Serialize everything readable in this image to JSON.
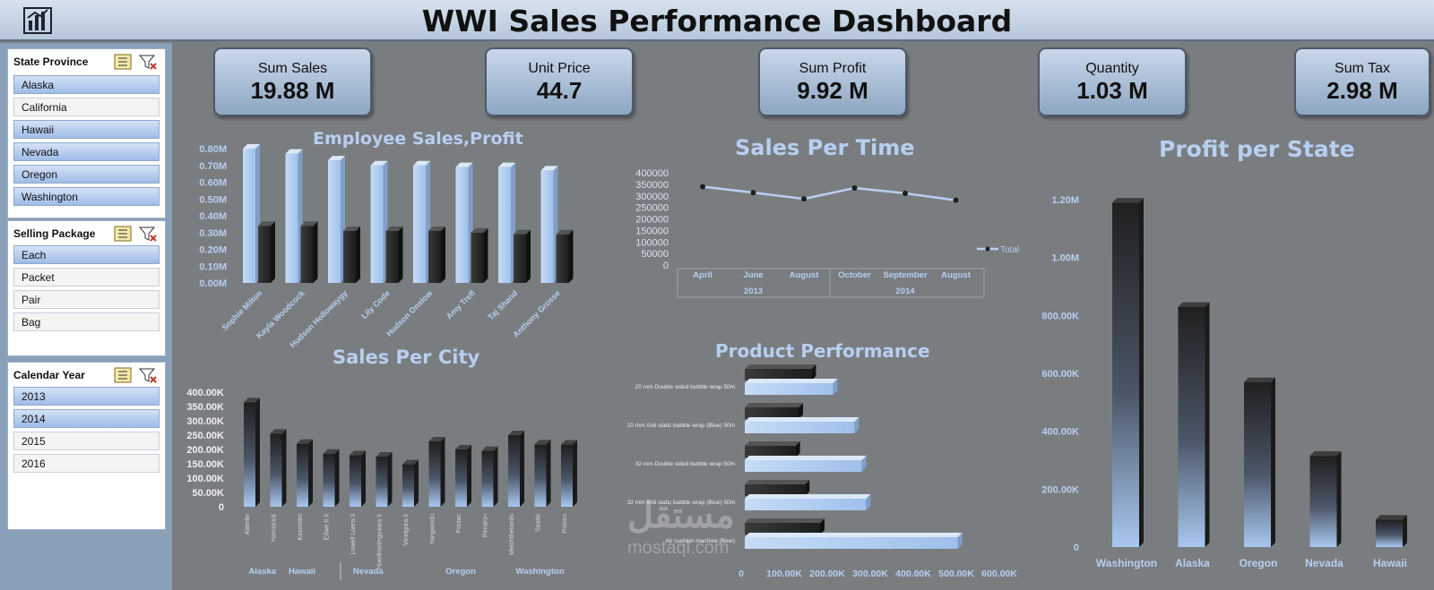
{
  "header": {
    "title": "WWI Sales Performance Dashboard",
    "logo_icon": "bar-chart-icon"
  },
  "slicers": [
    {
      "title": "State Province",
      "items": [
        {
          "label": "Alaska",
          "selected": true
        },
        {
          "label": "California",
          "selected": false
        },
        {
          "label": "Hawaii",
          "selected": true
        },
        {
          "label": "Nevada",
          "selected": true
        },
        {
          "label": "Oregon",
          "selected": true
        },
        {
          "label": "Washington",
          "selected": true
        }
      ]
    },
    {
      "title": "Selling Package",
      "items": [
        {
          "label": "Each",
          "selected": true
        },
        {
          "label": "Packet",
          "selected": false
        },
        {
          "label": "Pair",
          "selected": false
        },
        {
          "label": "Bag",
          "selected": false
        }
      ]
    },
    {
      "title": "Calendar Year",
      "items": [
        {
          "label": "2013",
          "selected": true
        },
        {
          "label": "2014",
          "selected": true
        },
        {
          "label": "2015",
          "selected": false
        },
        {
          "label": "2016",
          "selected": false
        }
      ]
    }
  ],
  "kpis": [
    {
      "label": "Sum Sales",
      "value": "19.88 M"
    },
    {
      "label": "Unit Price",
      "value": "44.7"
    },
    {
      "label": "Sum Profit",
      "value": "9.92 M"
    },
    {
      "label": "Quantity",
      "value": "1.03 M"
    },
    {
      "label": "Sum Tax",
      "value": "2.98 M"
    }
  ],
  "watermark": {
    "line1": "مستقل",
    "line2": "mostaql.com"
  },
  "colors": {
    "accent": "#b7cff0",
    "bar_light": "#a9c8f0",
    "bar_dark": "#2b2b2b"
  },
  "chart_data": [
    {
      "id": "employee",
      "type": "bar",
      "title": "Employee Sales,Profit",
      "categories": [
        "Sophie Milton",
        "Kayla Woodcock",
        "Hudson Hollowaygy",
        "Lily Code",
        "Hudson Onslow",
        "Amy Trefl",
        "Taj Shand",
        "Anthony Grosse"
      ],
      "series": [
        {
          "values": [
            0.8,
            0.77,
            0.73,
            0.7,
            0.7,
            0.69,
            0.69,
            0.67
          ]
        },
        {
          "values": [
            0.34,
            0.34,
            0.31,
            0.31,
            0.31,
            0.3,
            0.29,
            0.29
          ]
        }
      ],
      "yticks": [
        "0.00M",
        "0.10M",
        "0.20M",
        "0.30M",
        "0.40M",
        "0.50M",
        "0.60M",
        "0.70M",
        "0.80M"
      ],
      "ylim": [
        0,
        0.8
      ]
    },
    {
      "id": "time",
      "type": "line",
      "title": "Sales Per Time",
      "categories": [
        "April",
        "June",
        "August",
        "October",
        "September",
        "August"
      ],
      "groups": [
        {
          "label": "2013",
          "span": 3
        },
        {
          "label": "2014",
          "span": 3
        }
      ],
      "series": [
        {
          "name": "Total",
          "values": [
            340000,
            314000,
            287000,
            334000,
            311000,
            281000
          ]
        }
      ],
      "yticks": [
        "0",
        "50000",
        "100000",
        "150000",
        "200000",
        "250000",
        "300000",
        "350000",
        "400000"
      ],
      "ylim": [
        0,
        400000
      ],
      "legend": "right"
    },
    {
      "id": "city",
      "type": "bar",
      "title": "Sales Per City",
      "categories": [
        "Alamite",
        "Hamstock",
        "Kasombo",
        "Edwe II II",
        "Lowell Loera 3",
        "Hoedinwimgyaara II",
        "Vinelgora II",
        "Yangwindo",
        "Pontac",
        "Penaton",
        "Melchtherands",
        "Seatie",
        "Poloco"
      ],
      "groups": [
        {
          "label": "Alaska",
          "span": 2
        },
        {
          "label": "Hawaii",
          "span": 1
        },
        {
          "label": "Nevada",
          "span": 4
        },
        {
          "label": "Oregon",
          "span": 3
        },
        {
          "label": "Washington",
          "span": 3
        }
      ],
      "values": [
        365000,
        255000,
        220000,
        185000,
        180000,
        175000,
        148000,
        228000,
        200000,
        195000,
        250000,
        218000,
        217000
      ],
      "yticks": [
        "0",
        "50.00K",
        "100.00K",
        "150.00K",
        "200.00K",
        "250.00K",
        "300.00K",
        "350.00K",
        "400.00K"
      ],
      "ylim": [
        0,
        400000
      ]
    },
    {
      "id": "product",
      "type": "bar",
      "orientation": "horizontal",
      "title": "Product Performance",
      "categories": [
        "20 mm Double sided bubble wrap 50m",
        "10 mm Anti static bubble wrap (Blue) 50m",
        "32 mm Double sided bubble wrap 50m",
        "32 mm Anti static bubble wrap (Blue) 50m",
        "Air cushion machine (Blue)"
      ],
      "series": [
        {
          "values": [
            155000,
            125000,
            118000,
            140000,
            175000
          ]
        },
        {
          "values": [
            205000,
            255000,
            272000,
            282000,
            495000
          ]
        }
      ],
      "xticks": [
        "0",
        "100.00K",
        "200.00K",
        "300.00K",
        "400.00K",
        "500.00K",
        "600.00K"
      ],
      "xlim": [
        0,
        600000
      ]
    },
    {
      "id": "state",
      "type": "bar",
      "title": "Profit per State",
      "categories": [
        "Washington",
        "Alaska",
        "Oregon",
        "Nevada",
        "Hawaii"
      ],
      "values": [
        1190000,
        830000,
        570000,
        315000,
        95000
      ],
      "yticks": [
        "0",
        "200.00K",
        "400.00K",
        "600.00K",
        "800.00K",
        "1.00M",
        "1.20M"
      ],
      "ylim": [
        0,
        1200000
      ]
    }
  ]
}
